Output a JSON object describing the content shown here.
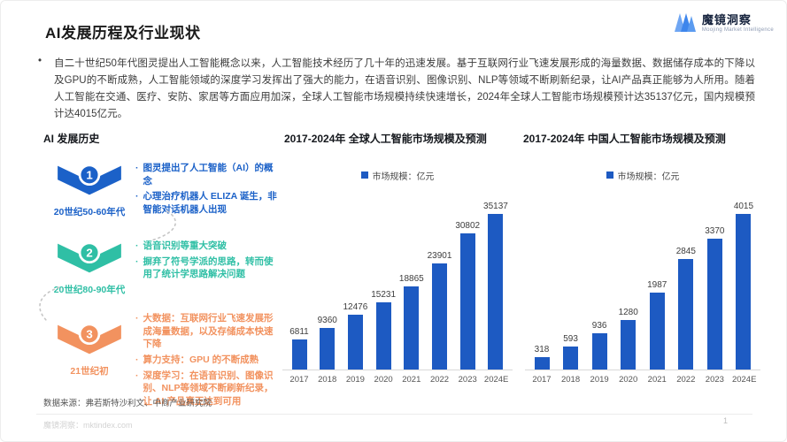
{
  "header": {
    "title": "AI发展历程及行业现状",
    "logo": {
      "brand": "魔镜洞察",
      "tagline": "Moojing Market Intelligence",
      "mark_color_light": "#6FA6F3",
      "mark_color_dark": "#3E86EC"
    }
  },
  "intro": {
    "bullet": "•",
    "text": "自二十世纪50年代图灵提出人工智能概念以来，人工智能技术经历了几十年的迅速发展。基于互联网行业飞速发展形成的海量数据、数据储存成本的下降以及GPU的不断成熟，人工智能领域的深度学习发挥出了强大的能力，在语音识别、图像识别、NLP等领域不断刷新纪录，让AI产品真正能够为人所用。随着人工智能在交通、医疗、安防、家居等方面应用加深，全球人工智能市场规模持续快速增长，2024年全球人工智能市场规模预计达35137亿元，国内规模预计达4015亿元。"
  },
  "timeline": {
    "heading": "AI 发展历史",
    "stages": [
      {
        "number": "1",
        "era": "20世纪50-60年代",
        "color": "#1B61C8",
        "bullets": [
          "图灵提出了人工智能（AI）的概念",
          "心理治疗机器人 ELIZA 诞生，非智能对话机器人出现"
        ]
      },
      {
        "number": "2",
        "era": "20世纪80-90年代",
        "color": "#2FBFA5",
        "bullets": [
          "语音识别等重大突破",
          "摒弃了符号学派的思路，转而使用了统计学思路解决问题"
        ]
      },
      {
        "number": "3",
        "era": "21世纪初",
        "color": "#F2925F",
        "bullets": [
          "大数据：互联网行业飞速发展形成海量数据，以及存储成本快速下降",
          "算力支持：GPU 的不断成熟",
          "深度学习：在语音识别、图像识别、NLP等领域不断刷新纪录，让 AI 产品真正达到可用"
        ]
      }
    ]
  },
  "chart_data": [
    {
      "type": "bar",
      "title": "2017-2024年 全球人工智能市场规模及预测",
      "legend": "市场规模：亿元",
      "categories": [
        "2017",
        "2018",
        "2019",
        "2020",
        "2021",
        "2022",
        "2023",
        "2024E"
      ],
      "values": [
        6811,
        9360,
        12476,
        15231,
        18865,
        23901,
        30802,
        35137
      ],
      "bar_color": "#1D5AC2",
      "xlabel": "",
      "ylabel": "亿元",
      "ylim": [
        0,
        37000
      ],
      "grid": false,
      "legend_position": "top"
    },
    {
      "type": "bar",
      "title": "2017-2024年 中国人工智能市场规模及预测",
      "legend": "市场规模：亿元",
      "categories": [
        "2017",
        "2018",
        "2019",
        "2020",
        "2021",
        "2022",
        "2023",
        "2024E"
      ],
      "values": [
        318,
        593,
        936,
        1280,
        1987,
        2845,
        3370,
        4015
      ],
      "bar_color": "#1D5AC2",
      "xlabel": "",
      "ylabel": "亿元",
      "ylim": [
        0,
        4300
      ],
      "grid": false,
      "legend_position": "top"
    }
  ],
  "footer": {
    "source": "数据来源：弗若斯特沙利文、中商产业研究院",
    "site": "魔镜洞察：mktindex.com",
    "page": "1"
  }
}
